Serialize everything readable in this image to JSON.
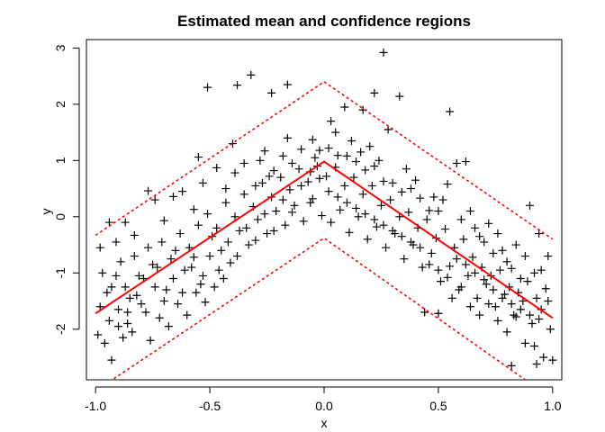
{
  "chart_data": {
    "type": "scatter",
    "title": "Estimated mean and confidence regions",
    "xlabel": "x",
    "ylabel": "y",
    "xlim": [
      -1.04,
      1.04
    ],
    "ylim": [
      -2.9,
      3.15
    ],
    "xticks": [
      -1.0,
      -0.5,
      0.0,
      0.5,
      1.0
    ],
    "xtick_labels": [
      "-1.0",
      "-0.5",
      "0.0",
      "0.5",
      "1.0"
    ],
    "yticks": [
      -2,
      -1,
      0,
      1,
      2,
      3
    ],
    "ytick_labels": [
      "-2",
      "-1",
      "0",
      "1",
      "2",
      "3"
    ],
    "grid": false,
    "series": [
      {
        "role": "estimated-mean",
        "style": "solid",
        "color": "#ff0000",
        "x": [
          -1.0,
          0.0,
          1.0
        ],
        "y": [
          -1.72,
          0.98,
          -1.8
        ]
      },
      {
        "role": "upper-confidence-band",
        "style": "dotted",
        "color": "#ff0000",
        "x": [
          -1.0,
          0.0,
          1.0
        ],
        "y": [
          -0.33,
          2.4,
          -0.4
        ]
      },
      {
        "role": "lower-confidence-band",
        "style": "dotted",
        "color": "#ff0000",
        "x": [
          -0.92,
          0.0,
          0.88
        ],
        "y": [
          -2.88,
          -0.38,
          -2.9
        ]
      }
    ],
    "points_marker": "+",
    "points_color": "#000000",
    "points": [
      [
        -0.51,
        2.3
      ],
      [
        -0.38,
        2.34
      ],
      [
        -0.32,
        2.52
      ],
      [
        -0.23,
        2.2
      ],
      [
        -0.16,
        2.35
      ],
      [
        0.26,
        2.92
      ],
      [
        0.22,
        2.2
      ],
      [
        0.33,
        2.14
      ],
      [
        0.55,
        1.87
      ],
      [
        -0.55,
        1.06
      ],
      [
        -0.4,
        1.3
      ],
      [
        0.03,
        1.7
      ],
      [
        0.09,
        1.95
      ],
      [
        0.17,
        1.9
      ],
      [
        0.28,
        1.55
      ],
      [
        -0.16,
        1.4
      ],
      [
        -0.05,
        1.37
      ],
      [
        0.05,
        1.5
      ],
      [
        -0.98,
        -0.55
      ],
      [
        -0.94,
        -0.1
      ],
      [
        -0.91,
        -0.45
      ],
      [
        -0.87,
        -0.1
      ],
      [
        -0.83,
        -0.33
      ],
      [
        -0.77,
        0.46
      ],
      [
        -0.74,
        0.3
      ],
      [
        -0.7,
        -0.07
      ],
      [
        -0.66,
        0.36
      ],
      [
        -0.62,
        0.45
      ],
      [
        -0.57,
        0.13
      ],
      [
        -0.53,
        0.6
      ],
      [
        -0.47,
        0.87
      ],
      [
        -0.43,
        0.5
      ],
      [
        -0.39,
        0.78
      ],
      [
        -0.35,
        0.95
      ],
      [
        -0.3,
        0.55
      ],
      [
        -0.26,
        1.17
      ],
      [
        -0.22,
        0.82
      ],
      [
        -0.18,
        1.08
      ],
      [
        -0.14,
        0.95
      ],
      [
        -0.1,
        1.2
      ],
      [
        -0.06,
        0.8
      ],
      [
        -0.02,
        1.18
      ],
      [
        0.02,
        1.22
      ],
      [
        0.06,
        1.09
      ],
      [
        0.1,
        1.08
      ],
      [
        0.14,
        0.98
      ],
      [
        0.18,
        0.83
      ],
      [
        0.22,
        0.9
      ],
      [
        0.26,
        0.63
      ],
      [
        0.3,
        0.6
      ],
      [
        0.34,
        0.44
      ],
      [
        0.38,
        0.5
      ],
      [
        0.42,
        0.33
      ],
      [
        0.46,
        0.11
      ],
      [
        0.5,
        0.1
      ],
      [
        0.54,
        0.58
      ],
      [
        0.58,
        0.95
      ],
      [
        0.62,
        0.98
      ],
      [
        0.66,
        -0.2
      ],
      [
        0.7,
        -0.45
      ],
      [
        0.74,
        -0.65
      ],
      [
        0.78,
        -0.6
      ],
      [
        0.82,
        -0.92
      ],
      [
        0.86,
        -1.1
      ],
      [
        0.9,
        0.2
      ],
      [
        0.94,
        -0.3
      ],
      [
        0.98,
        -0.7
      ],
      [
        -0.97,
        -1.0
      ],
      [
        -0.93,
        -1.25
      ],
      [
        -0.89,
        -0.8
      ],
      [
        -0.85,
        -1.45
      ],
      [
        -0.81,
        -1.05
      ],
      [
        -0.77,
        -0.55
      ],
      [
        -0.73,
        -0.9
      ],
      [
        -0.69,
        -1.3
      ],
      [
        -0.65,
        -0.6
      ],
      [
        -0.61,
        -0.95
      ],
      [
        -0.57,
        -0.72
      ],
      [
        -0.53,
        -1.05
      ],
      [
        -0.49,
        -0.35
      ],
      [
        -0.45,
        -0.6
      ],
      [
        -0.41,
        -0.82
      ],
      [
        -0.37,
        -0.25
      ],
      [
        -0.33,
        -0.5
      ],
      [
        -0.29,
        -0.05
      ],
      [
        -0.25,
        -0.3
      ],
      [
        -0.21,
        0.1
      ],
      [
        -0.17,
        -0.15
      ],
      [
        -0.13,
        0.2
      ],
      [
        -0.09,
        -0.08
      ],
      [
        -0.05,
        0.32
      ],
      [
        -0.01,
        0.02
      ],
      [
        0.03,
        -0.1
      ],
      [
        0.07,
        0.12
      ],
      [
        0.11,
        -0.28
      ],
      [
        0.15,
        0.0
      ],
      [
        0.19,
        -0.4
      ],
      [
        0.23,
        -0.18
      ],
      [
        0.27,
        -0.55
      ],
      [
        0.31,
        -0.3
      ],
      [
        0.35,
        -0.75
      ],
      [
        0.39,
        -0.5
      ],
      [
        0.43,
        -0.9
      ],
      [
        0.47,
        -0.65
      ],
      [
        0.51,
        -1.15
      ],
      [
        0.55,
        -0.88
      ],
      [
        0.59,
        -1.3
      ],
      [
        0.63,
        -1.05
      ],
      [
        0.67,
        -1.45
      ],
      [
        0.71,
        -1.2
      ],
      [
        0.75,
        -1.6
      ],
      [
        0.79,
        -1.38
      ],
      [
        0.83,
        -1.75
      ],
      [
        0.87,
        -1.5
      ],
      [
        0.91,
        -1.9
      ],
      [
        0.95,
        -1.65
      ],
      [
        0.99,
        -2.0
      ],
      [
        -0.99,
        -2.1
      ],
      [
        -0.96,
        -2.25
      ],
      [
        -0.93,
        -2.55
      ],
      [
        -0.9,
        -1.95
      ],
      [
        -0.88,
        -2.15
      ],
      [
        -0.86,
        -1.7
      ],
      [
        -0.84,
        -2.05
      ],
      [
        -0.8,
        -1.55
      ],
      [
        -0.76,
        -2.2
      ],
      [
        -0.72,
        -1.8
      ],
      [
        -0.68,
        -1.95
      ],
      [
        -0.64,
        -1.55
      ],
      [
        -0.6,
        -1.75
      ],
      [
        -0.56,
        -1.35
      ],
      [
        -0.52,
        -1.52
      ],
      [
        -0.48,
        -1.25
      ],
      [
        -0.44,
        -1.1
      ],
      [
        0.44,
        -1.7
      ],
      [
        0.5,
        -1.72
      ],
      [
        0.56,
        -1.45
      ],
      [
        0.6,
        -1.25
      ],
      [
        0.64,
        -1.6
      ],
      [
        0.68,
        -1.75
      ],
      [
        0.72,
        -1.55
      ],
      [
        0.76,
        -1.85
      ],
      [
        0.8,
        -2.05
      ],
      [
        0.84,
        -1.78
      ],
      [
        0.88,
        -2.25
      ],
      [
        0.92,
        -2.3
      ],
      [
        0.96,
        -2.5
      ],
      [
        1.0,
        -2.55
      ],
      [
        0.82,
        -2.65
      ],
      [
        0.93,
        -2.62
      ],
      [
        -0.95,
        -1.35
      ],
      [
        -0.91,
        -1.05
      ],
      [
        -0.87,
        -1.25
      ],
      [
        -0.83,
        -0.7
      ],
      [
        -0.79,
        -1.1
      ],
      [
        -0.75,
        -0.85
      ],
      [
        -0.71,
        -0.45
      ],
      [
        -0.67,
        -0.75
      ],
      [
        -0.63,
        -0.3
      ],
      [
        -0.59,
        -0.55
      ],
      [
        -0.55,
        -0.15
      ],
      [
        -0.51,
        0.05
      ],
      [
        -0.47,
        -0.2
      ],
      [
        -0.43,
        0.25
      ],
      [
        -0.39,
        0.0
      ],
      [
        -0.35,
        0.4
      ],
      [
        -0.31,
        0.18
      ],
      [
        -0.27,
        0.6
      ],
      [
        -0.23,
        0.35
      ],
      [
        -0.19,
        0.7
      ],
      [
        -0.15,
        0.48
      ],
      [
        -0.11,
        0.85
      ],
      [
        -0.07,
        0.62
      ],
      [
        -0.03,
        0.9
      ],
      [
        0.01,
        0.72
      ],
      [
        0.05,
        0.88
      ],
      [
        0.09,
        0.55
      ],
      [
        0.13,
        0.7
      ],
      [
        0.17,
        0.4
      ],
      [
        0.21,
        0.55
      ],
      [
        0.25,
        0.2
      ],
      [
        0.29,
        0.3
      ],
      [
        0.33,
        0.0
      ],
      [
        0.37,
        0.08
      ],
      [
        0.41,
        -0.2
      ],
      [
        0.45,
        -0.05
      ],
      [
        0.49,
        -0.38
      ],
      [
        0.53,
        -0.22
      ],
      [
        0.57,
        -0.55
      ],
      [
        0.61,
        -0.4
      ],
      [
        0.65,
        -0.72
      ],
      [
        0.69,
        -0.9
      ],
      [
        0.73,
        -1.05
      ],
      [
        0.77,
        -0.95
      ],
      [
        0.81,
        -1.25
      ],
      [
        0.85,
        -1.35
      ],
      [
        0.89,
        -1.15
      ],
      [
        0.93,
        -1.45
      ],
      [
        0.97,
        -1.28
      ],
      [
        0.95,
        -0.95
      ],
      [
        -0.98,
        -1.6
      ],
      [
        -0.94,
        -1.85
      ],
      [
        -0.9,
        -1.65
      ],
      [
        -0.86,
        -1.9
      ],
      [
        -0.82,
        -1.4
      ],
      [
        -0.78,
        -1.7
      ],
      [
        -0.74,
        -1.25
      ],
      [
        -0.7,
        -1.5
      ],
      [
        -0.66,
        -1.1
      ],
      [
        -0.62,
        -1.35
      ],
      [
        -0.58,
        -0.9
      ],
      [
        -0.54,
        -1.2
      ],
      [
        -0.5,
        -0.7
      ],
      [
        -0.46,
        -0.95
      ],
      [
        -0.42,
        -0.45
      ],
      [
        -0.38,
        -0.7
      ],
      [
        -0.34,
        -0.2
      ],
      [
        -0.3,
        -0.42
      ],
      [
        -0.26,
        0.05
      ],
      [
        -0.22,
        -0.25
      ],
      [
        -0.18,
        0.3
      ],
      [
        -0.14,
        0.08
      ],
      [
        -0.1,
        0.55
      ],
      [
        -0.06,
        0.25
      ],
      [
        -0.02,
        0.68
      ],
      [
        0.02,
        0.45
      ],
      [
        0.06,
        0.35
      ],
      [
        0.1,
        0.25
      ],
      [
        0.14,
        0.15
      ],
      [
        0.18,
        0.05
      ],
      [
        0.22,
        -0.05
      ],
      [
        0.26,
        -0.15
      ],
      [
        0.3,
        -0.25
      ],
      [
        0.34,
        -0.35
      ],
      [
        0.38,
        -0.45
      ],
      [
        0.42,
        -0.55
      ],
      [
        0.46,
        -0.85
      ],
      [
        0.5,
        -0.95
      ],
      [
        0.54,
        -1.08
      ],
      [
        0.58,
        -0.75
      ],
      [
        0.62,
        -0.85
      ],
      [
        0.66,
        -1.0
      ],
      [
        0.7,
        -1.12
      ],
      [
        0.74,
        -1.3
      ],
      [
        0.78,
        -1.45
      ],
      [
        0.82,
        -1.55
      ],
      [
        0.86,
        -1.65
      ],
      [
        0.9,
        -1.75
      ],
      [
        0.94,
        -1.82
      ],
      [
        0.98,
        -1.5
      ],
      [
        0.12,
        1.35
      ],
      [
        0.16,
        1.15
      ],
      [
        -0.04,
        1.05
      ],
      [
        0.2,
        1.25
      ],
      [
        0.24,
        1.0
      ],
      [
        -0.28,
        1.0
      ],
      [
        -0.24,
        0.72
      ],
      [
        0.36,
        0.85
      ],
      [
        0.4,
        0.65
      ],
      [
        0.48,
        0.35
      ],
      [
        0.52,
        0.3
      ],
      [
        0.6,
        -0.05
      ],
      [
        0.64,
        0.1
      ],
      [
        0.68,
        -0.35
      ],
      [
        0.72,
        -0.12
      ],
      [
        0.76,
        -0.3
      ],
      [
        0.8,
        -0.8
      ],
      [
        0.84,
        -0.5
      ],
      [
        0.88,
        -0.7
      ],
      [
        0.92,
        -1.0
      ]
    ]
  }
}
